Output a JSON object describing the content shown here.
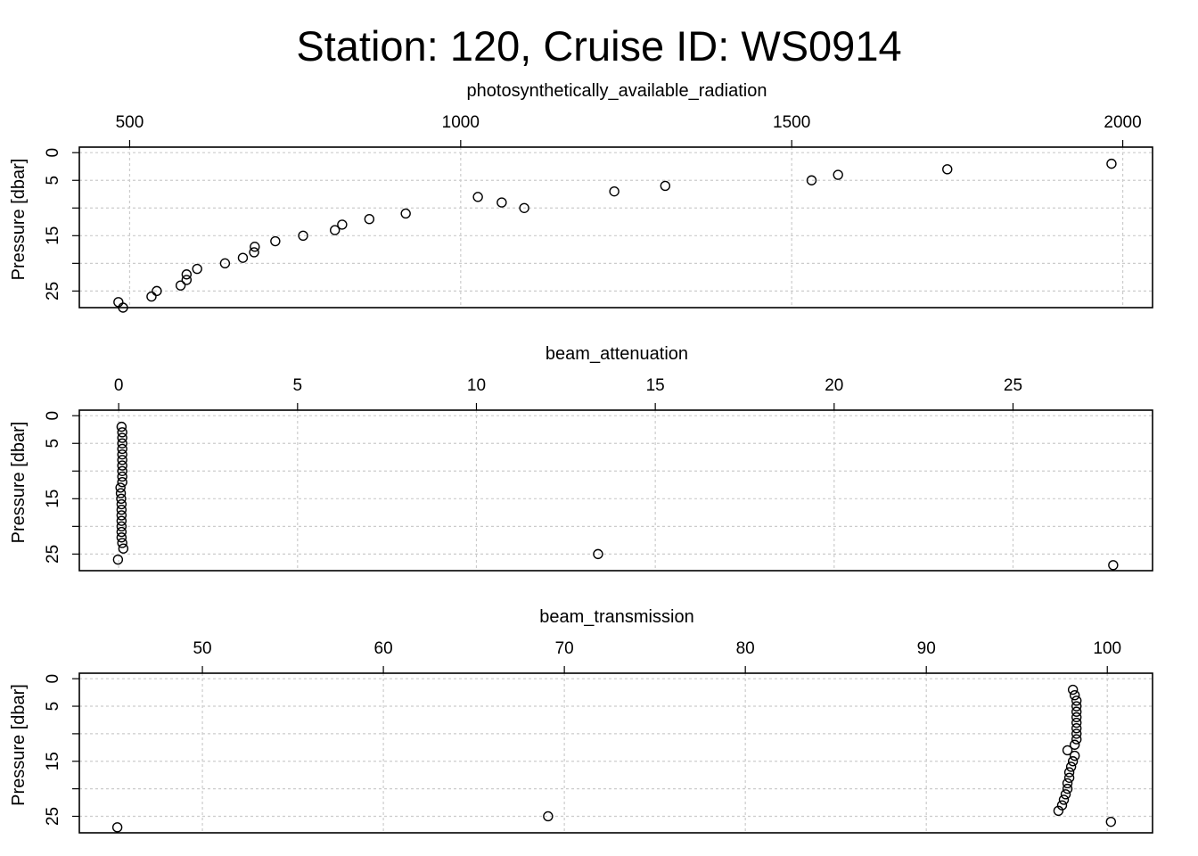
{
  "title": "Station: 120, Cruise ID: WS0914",
  "chart_data": [
    {
      "type": "scatter",
      "xlabel": "photosynthetically_available_radiation",
      "ylabel": "Pressure [dbar]",
      "xlim": [
        424,
        2045
      ],
      "ylim": [
        28,
        -1
      ],
      "xticks": [
        500,
        1000,
        1500,
        2000
      ],
      "yticks": [
        0,
        5,
        10,
        15,
        20,
        25
      ],
      "ytick_labels": [
        "0",
        "5",
        "",
        "15",
        "",
        "25"
      ],
      "grid": true,
      "series": [
        {
          "x": [
            1983,
            1735,
            1570,
            1530,
            1309,
            1232,
            1026,
            1062,
            1096,
            917,
            862,
            821,
            810,
            762,
            720,
            689,
            688,
            671,
            644,
            602,
            586,
            586,
            577,
            541,
            533,
            483,
            490
          ],
          "y": [
            2,
            3,
            4,
            5,
            6,
            7,
            8,
            9,
            10,
            11,
            12,
            13,
            14,
            15,
            16,
            17,
            18,
            19,
            20,
            21,
            22,
            23,
            24,
            25,
            26,
            27,
            28
          ]
        }
      ]
    },
    {
      "type": "scatter",
      "xlabel": "beam_attenuation",
      "ylabel": "Pressure [dbar]",
      "xlim": [
        -1.1,
        28.9
      ],
      "ylim": [
        28,
        -1
      ],
      "xticks": [
        0,
        5,
        10,
        15,
        20,
        25
      ],
      "yticks": [
        0,
        5,
        10,
        15,
        20,
        25
      ],
      "ytick_labels": [
        "0",
        "5",
        "",
        "15",
        "",
        "25"
      ],
      "grid": true,
      "series": [
        {
          "x": [
            0.08,
            0.1,
            0.1,
            0.1,
            0.1,
            0.1,
            0.1,
            0.1,
            0.1,
            0.1,
            0.1,
            0.05,
            0.06,
            0.07,
            0.08,
            0.08,
            0.08,
            0.08,
            0.08,
            0.08,
            0.08,
            0.1,
            0.13,
            13.4,
            -0.02,
            27.8
          ],
          "y": [
            2,
            3,
            4,
            5,
            6,
            7,
            8,
            9,
            10,
            11,
            12,
            13,
            14,
            15,
            16,
            17,
            18,
            19,
            20,
            21,
            22,
            23,
            24,
            25,
            26,
            27
          ]
        }
      ]
    },
    {
      "type": "scatter",
      "xlabel": "beam_transmission",
      "ylabel": "Pressure [dbar]",
      "xlim": [
        43.2,
        102.5
      ],
      "ylim": [
        28,
        -1
      ],
      "xticks": [
        50,
        60,
        70,
        80,
        90,
        100
      ],
      "yticks": [
        0,
        5,
        10,
        15,
        20,
        25
      ],
      "ytick_labels": [
        "0",
        "5",
        "",
        "15",
        "",
        "25"
      ],
      "grid": true,
      "series": [
        {
          "x": [
            98.1,
            98.2,
            98.3,
            98.3,
            98.3,
            98.3,
            98.3,
            98.3,
            98.3,
            98.3,
            98.2,
            97.8,
            98.2,
            98.1,
            98.0,
            97.9,
            97.9,
            97.8,
            97.8,
            97.7,
            97.6,
            97.5,
            97.3,
            69.1,
            100.2,
            45.3
          ],
          "y": [
            2,
            3,
            4,
            5,
            6,
            7,
            8,
            9,
            10,
            11,
            12,
            13,
            14,
            15,
            16,
            17,
            18,
            19,
            20,
            21,
            22,
            23,
            24,
            25,
            26,
            27
          ]
        }
      ]
    }
  ]
}
